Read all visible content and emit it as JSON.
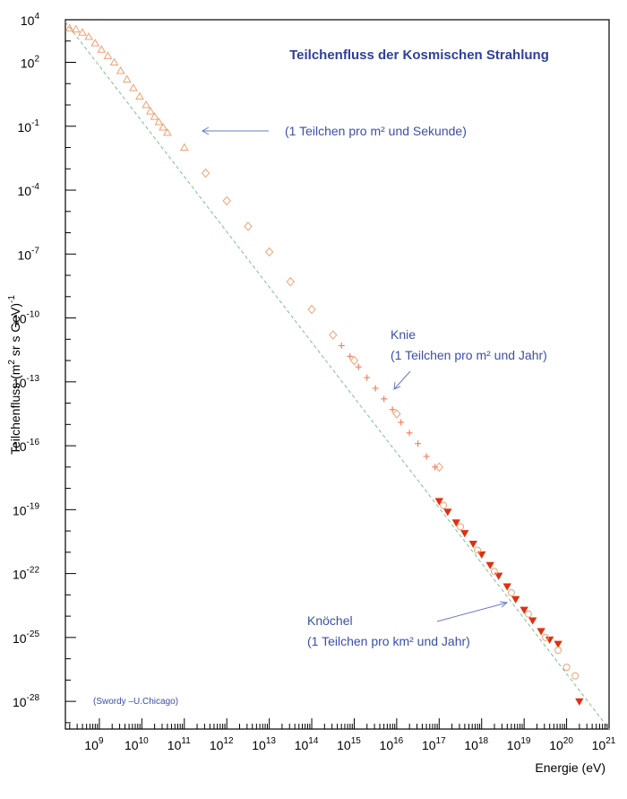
{
  "chart_data": {
    "type": "scatter",
    "title": "Teilchenfluss der Kosmischen Strahlung",
    "xlabel": "Energie (eV)",
    "ylabel_main": "Teilchenfluss (m",
    "ylabel_exp1": "2",
    "ylabel_mid": " sr s GeV)",
    "ylabel_exp2": "-1",
    "x_scale": "log",
    "y_scale": "log",
    "xlim_exp": [
      8.2,
      21
    ],
    "ylim_exp": [
      -29.3,
      4
    ],
    "x_ticks": [
      {
        "base": "10",
        "exp": "9",
        "e": 9
      },
      {
        "base": "10",
        "exp": "10",
        "e": 10
      },
      {
        "base": "10",
        "exp": "11",
        "e": 11
      },
      {
        "base": "10",
        "exp": "12",
        "e": 12
      },
      {
        "base": "10",
        "exp": "13",
        "e": 13
      },
      {
        "base": "10",
        "exp": "14",
        "e": 14
      },
      {
        "base": "10",
        "exp": "15",
        "e": 15
      },
      {
        "base": "10",
        "exp": "16",
        "e": 16
      },
      {
        "base": "10",
        "exp": "17",
        "e": 17
      },
      {
        "base": "10",
        "exp": "18",
        "e": 18
      },
      {
        "base": "10",
        "exp": "19",
        "e": 19
      },
      {
        "base": "10",
        "exp": "20",
        "e": 20
      },
      {
        "base": "10",
        "exp": "21",
        "e": 21
      }
    ],
    "y_ticks": [
      {
        "base": "10",
        "exp": "4",
        "e": 4
      },
      {
        "base": "10",
        "exp": "2",
        "e": 2
      },
      {
        "base": "10",
        "exp": "-1",
        "e": -1
      },
      {
        "base": "10",
        "exp": "-4",
        "e": -4
      },
      {
        "base": "10",
        "exp": "-7",
        "e": -7
      },
      {
        "base": "10",
        "exp": "-10",
        "e": -10
      },
      {
        "base": "10",
        "exp": "-13",
        "e": -13
      },
      {
        "base": "10",
        "exp": "-16",
        "e": -16
      },
      {
        "base": "10",
        "exp": "-19",
        "e": -19
      },
      {
        "base": "10",
        "exp": "-22",
        "e": -22
      },
      {
        "base": "10",
        "exp": "-25",
        "e": -25
      },
      {
        "base": "10",
        "exp": "-28",
        "e": -28
      }
    ],
    "grid": false,
    "series": [
      {
        "marker": "triangle-up-open",
        "color": "#f0a070",
        "points": [
          [
            8.3,
            3.6
          ],
          [
            8.45,
            3.55
          ],
          [
            8.6,
            3.4
          ],
          [
            8.75,
            3.2
          ],
          [
            8.9,
            2.9
          ],
          [
            9.05,
            2.6
          ],
          [
            9.2,
            2.3
          ],
          [
            9.35,
            2.0
          ],
          [
            9.5,
            1.6
          ],
          [
            9.65,
            1.2
          ],
          [
            9.8,
            0.8
          ],
          [
            9.95,
            0.4
          ],
          [
            10.1,
            0.0
          ],
          [
            10.2,
            -0.3
          ],
          [
            10.3,
            -0.55
          ],
          [
            10.4,
            -0.8
          ],
          [
            10.5,
            -1.05
          ],
          [
            10.6,
            -1.3
          ],
          [
            11.0,
            -2.0
          ]
        ]
      },
      {
        "marker": "diamond-open",
        "color": "#f0a070",
        "points": [
          [
            11.5,
            -3.2
          ],
          [
            12.0,
            -4.5
          ],
          [
            12.5,
            -5.7
          ],
          [
            13.0,
            -6.9
          ],
          [
            13.5,
            -8.3
          ],
          [
            14.0,
            -9.6
          ],
          [
            14.5,
            -10.8
          ],
          [
            15.0,
            -12.0
          ],
          [
            16.0,
            -14.5
          ],
          [
            17.0,
            -17.0
          ]
        ]
      },
      {
        "marker": "plus",
        "color": "#f08060",
        "points": [
          [
            14.7,
            -11.3
          ],
          [
            14.9,
            -11.8
          ],
          [
            15.1,
            -12.3
          ],
          [
            15.3,
            -12.8
          ],
          [
            15.5,
            -13.3
          ],
          [
            15.7,
            -13.8
          ],
          [
            15.9,
            -14.3
          ],
          [
            16.1,
            -14.9
          ],
          [
            16.3,
            -15.4
          ],
          [
            16.5,
            -15.9
          ],
          [
            16.7,
            -16.5
          ],
          [
            16.9,
            -17.0
          ]
        ]
      },
      {
        "marker": "triangle-down-filled",
        "color": "#e03010",
        "points": [
          [
            17.0,
            -18.6
          ],
          [
            17.2,
            -19.1
          ],
          [
            17.4,
            -19.6
          ],
          [
            17.6,
            -20.1
          ],
          [
            17.8,
            -20.6
          ],
          [
            18.0,
            -21.1
          ],
          [
            18.2,
            -21.6
          ],
          [
            18.4,
            -22.1
          ],
          [
            18.6,
            -22.6
          ],
          [
            18.8,
            -23.2
          ],
          [
            19.0,
            -23.7
          ],
          [
            19.2,
            -24.2
          ],
          [
            19.4,
            -24.7
          ],
          [
            19.6,
            -25.1
          ],
          [
            19.8,
            -25.3
          ],
          [
            20.3,
            -28.0
          ]
        ]
      },
      {
        "marker": "circle-open",
        "color": "#f0a070",
        "points": [
          [
            17.1,
            -18.8
          ],
          [
            17.5,
            -19.8
          ],
          [
            17.9,
            -20.9
          ],
          [
            18.3,
            -21.9
          ],
          [
            18.7,
            -22.9
          ],
          [
            19.1,
            -23.9
          ],
          [
            19.5,
            -25.0
          ],
          [
            19.8,
            -25.6
          ],
          [
            20.0,
            -26.4
          ],
          [
            20.2,
            -26.8
          ]
        ]
      }
    ],
    "fit_line": [
      [
        8.2,
        3.9
      ],
      [
        21,
        -29.3
      ]
    ],
    "annotations": [
      {
        "text": "(1 Teilchen pro m² und Sekunde)",
        "lines": [
          "(1 Teilchen pro m² und Sekunde)"
        ]
      },
      {
        "text": "Knie",
        "lines": [
          "Knie",
          "(1 Teilchen pro m² und Jahr)"
        ]
      },
      {
        "text": "Knöchel",
        "lines": [
          "Knöchel",
          "(1 Teilchen pro km² und Jahr)"
        ]
      }
    ],
    "credit": "(Swordy –U.Chicago)"
  }
}
